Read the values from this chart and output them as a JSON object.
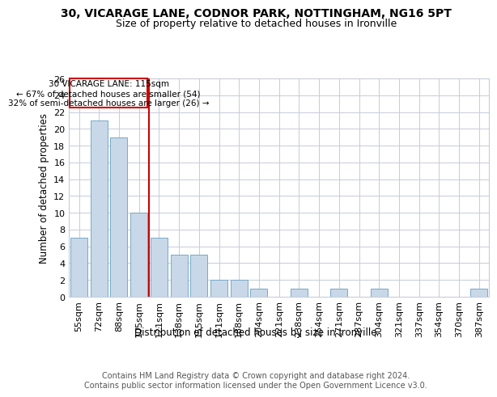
{
  "title_line1": "30, VICARAGE LANE, CODNOR PARK, NOTTINGHAM, NG16 5PT",
  "title_line2": "Size of property relative to detached houses in Ironville",
  "xlabel": "Distribution of detached houses by size in Ironville",
  "ylabel": "Number of detached properties",
  "footer_line1": "Contains HM Land Registry data © Crown copyright and database right 2024.",
  "footer_line2": "Contains public sector information licensed under the Open Government Licence v3.0.",
  "annotation_line1": "30 VICARAGE LANE: 115sqm",
  "annotation_line2": "← 67% of detached houses are smaller (54)",
  "annotation_line3": "32% of semi-detached houses are larger (26) →",
  "bar_categories": [
    "55sqm",
    "72sqm",
    "88sqm",
    "105sqm",
    "121sqm",
    "138sqm",
    "155sqm",
    "171sqm",
    "188sqm",
    "204sqm",
    "221sqm",
    "238sqm",
    "254sqm",
    "271sqm",
    "287sqm",
    "304sqm",
    "321sqm",
    "337sqm",
    "354sqm",
    "370sqm",
    "387sqm"
  ],
  "bar_values": [
    7,
    21,
    19,
    10,
    7,
    5,
    5,
    2,
    2,
    1,
    0,
    1,
    0,
    1,
    0,
    1,
    0,
    0,
    0,
    0,
    1
  ],
  "bar_color": "#c8d8e8",
  "bar_edgecolor": "#7aa8c8",
  "vline_color": "#cc0000",
  "vline_position": 3.5,
  "annotation_box_color": "#cc0000",
  "annotation_text_color": "#000000",
  "background_color": "#ffffff",
  "grid_color": "#c8ccd8",
  "ylim_max": 26,
  "yticks": [
    0,
    2,
    4,
    6,
    8,
    10,
    12,
    14,
    16,
    18,
    20,
    22,
    24,
    26
  ],
  "title_fontsize": 10,
  "subtitle_fontsize": 9,
  "axis_label_fontsize": 8.5,
  "tick_fontsize": 8,
  "footer_fontsize": 7,
  "annotation_fontsize": 7.5
}
